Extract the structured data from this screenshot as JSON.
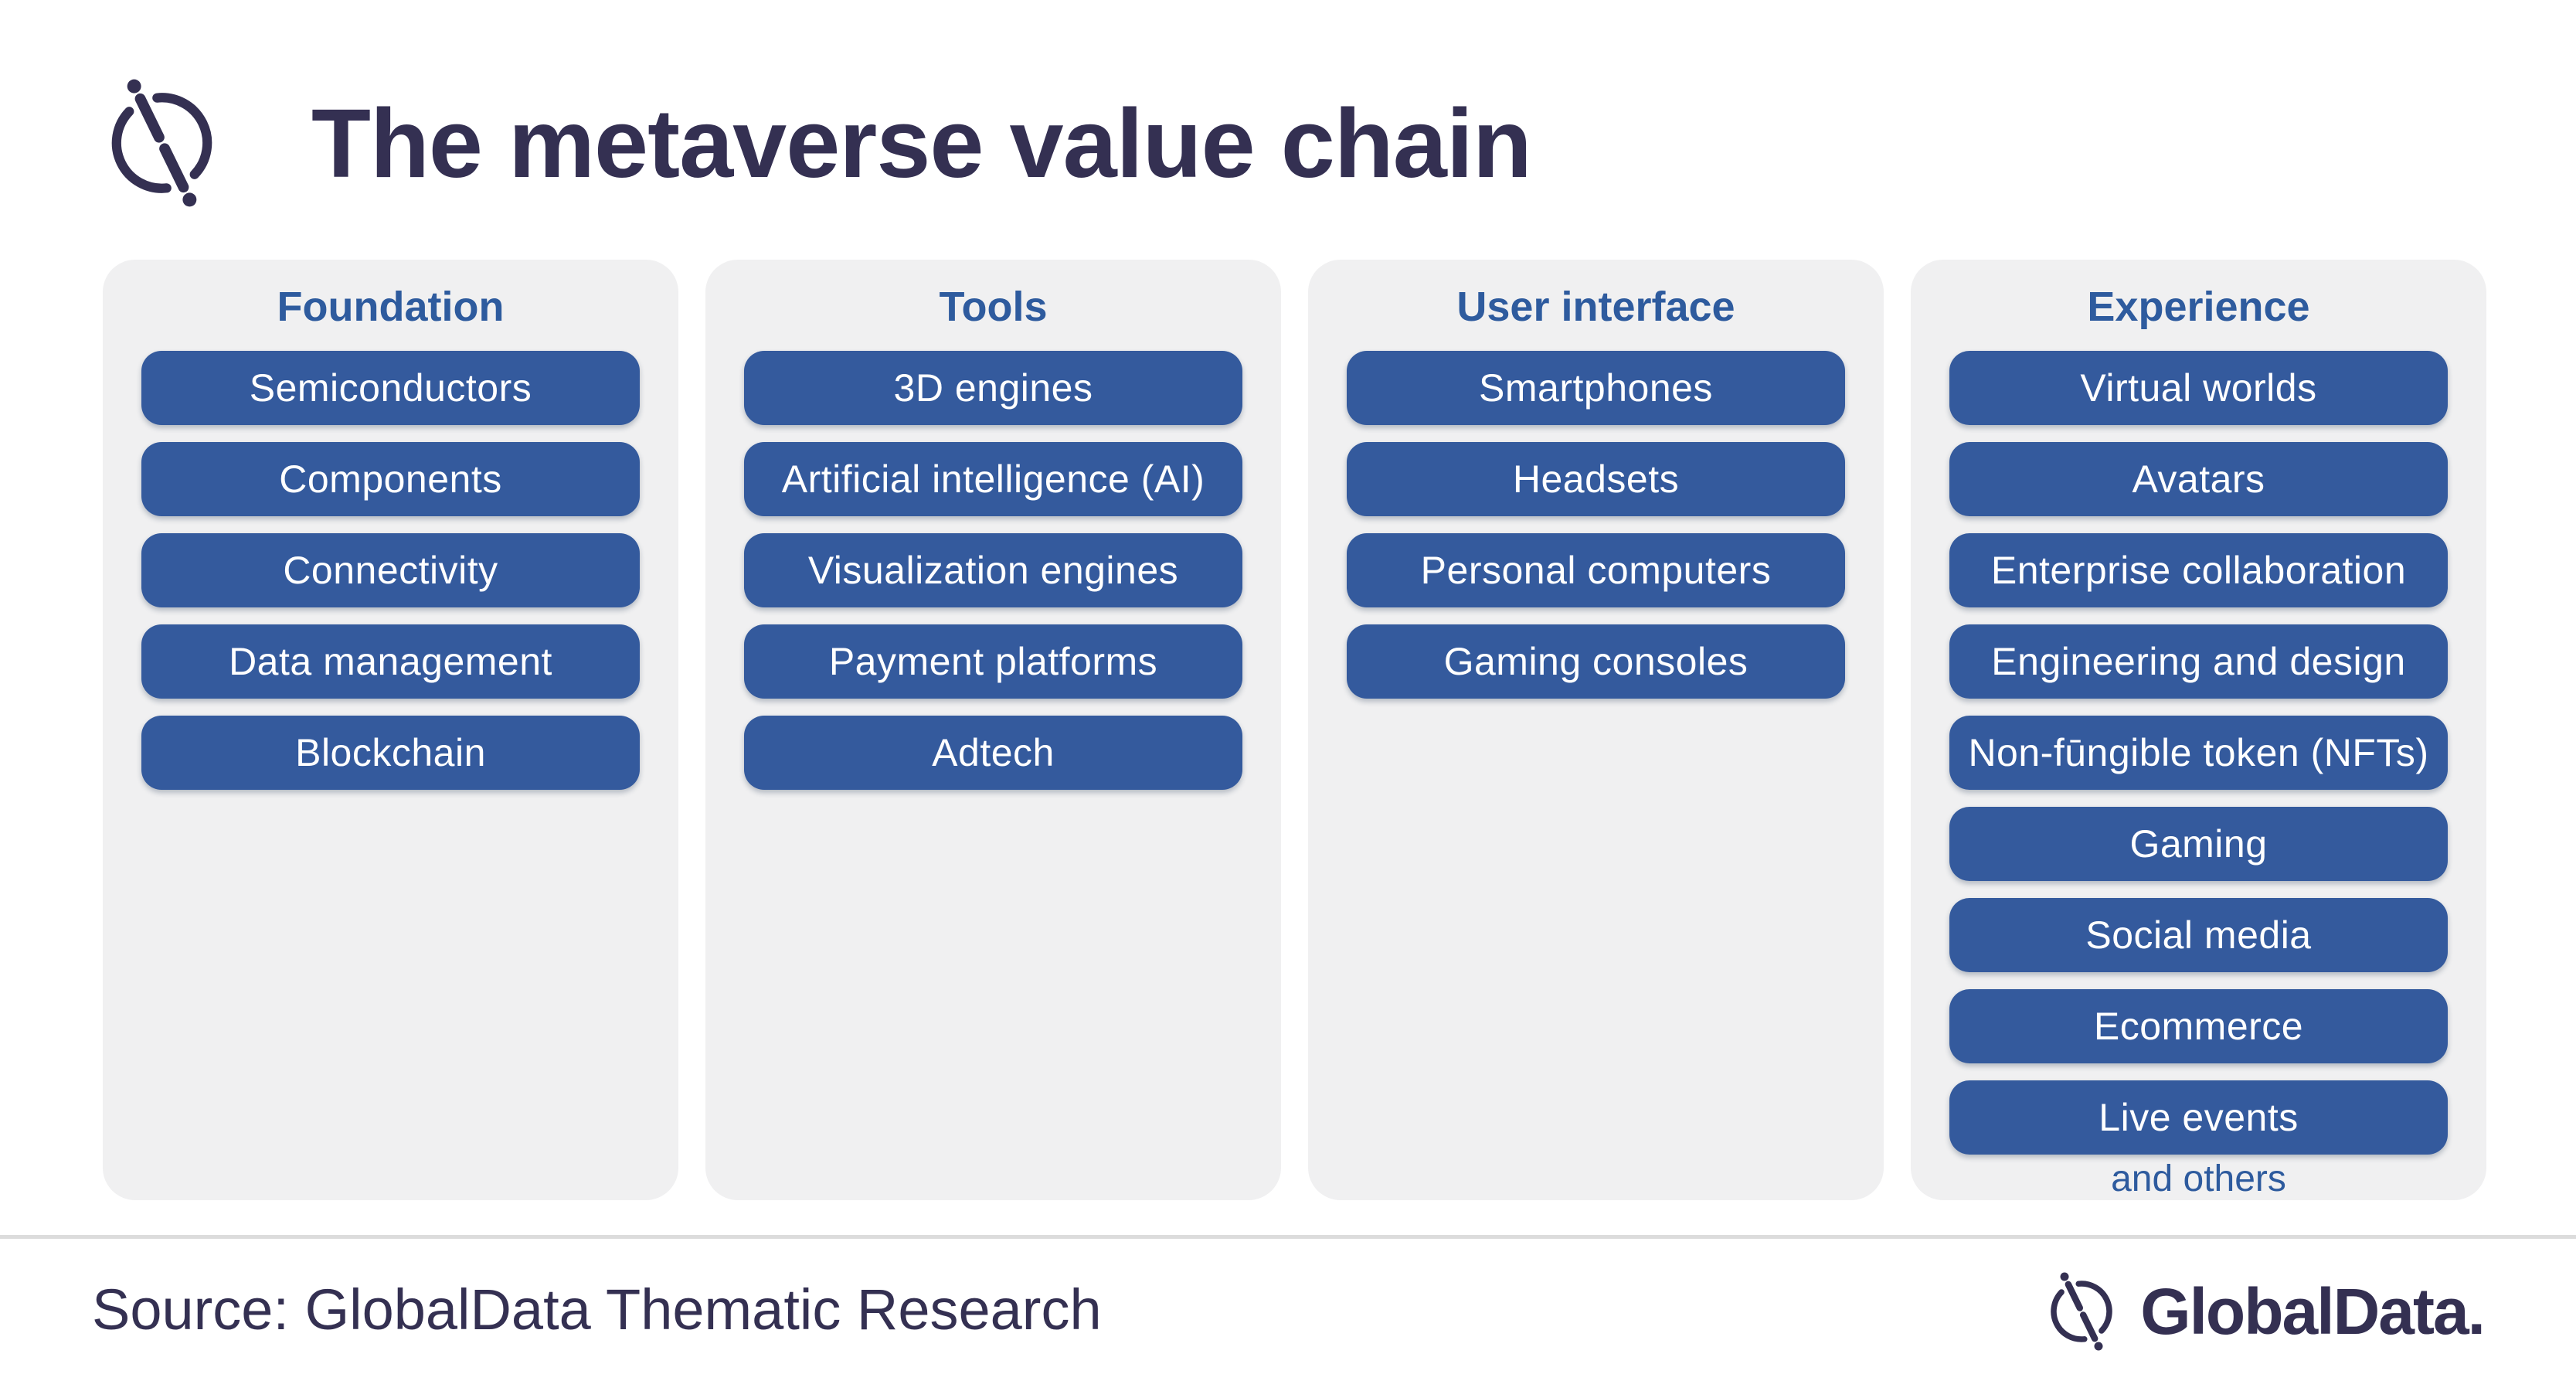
{
  "title": "The metaverse value chain",
  "columns": [
    {
      "id": "foundation",
      "title": "Foundation",
      "items": [
        "Semiconductors",
        "Components",
        "Connectivity",
        "Data management",
        "Blockchain"
      ]
    },
    {
      "id": "tools",
      "title": "Tools",
      "items": [
        "3D engines",
        "Artificial intelligence (AI)",
        "Visualization engines",
        "Payment platforms",
        "Adtech"
      ]
    },
    {
      "id": "user-interface",
      "title": "User interface",
      "items": [
        "Smartphones",
        "Headsets",
        "Personal computers",
        "Gaming consoles"
      ]
    },
    {
      "id": "experience",
      "title": "Experience",
      "items": [
        "Virtual worlds",
        "Avatars",
        "Enterprise collaboration",
        "Engineering and design",
        "Non-fūngible token (NFTs)",
        "Gaming",
        "Social media",
        "Ecommerce",
        "Live events"
      ],
      "note": "and others"
    }
  ],
  "footer": {
    "source": "Source: GlobalData Thematic Research",
    "brand": "GlobalData."
  },
  "colors": {
    "pill": "#345A9D",
    "column_title": "#2E5B9E",
    "dark": "#343052",
    "panel_bg": "#F0F0F1",
    "divider": "#DCDCDC",
    "pill_text": "#FFFFFF"
  }
}
